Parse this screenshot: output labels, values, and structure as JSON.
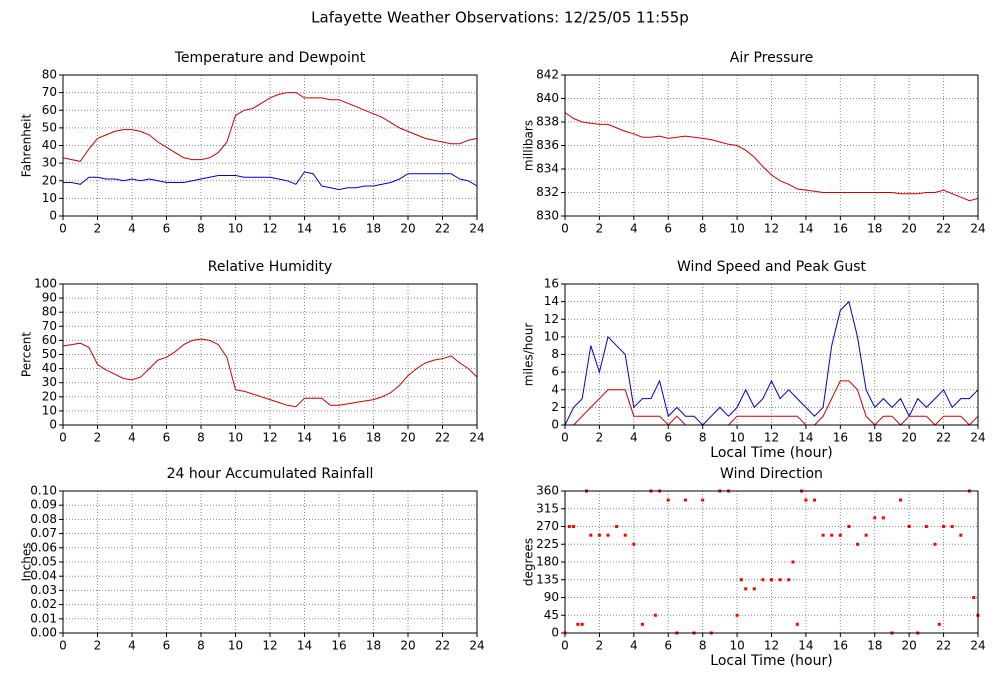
{
  "title": "Lafayette Weather Observations: 12/25/05 11:55p",
  "chart_data": [
    {
      "type": "line",
      "title": "Temperature and Dewpoint",
      "ylabel": "Fahrenheit",
      "x": [
        0,
        0.5,
        1,
        1.5,
        2,
        2.5,
        3,
        3.5,
        4,
        4.5,
        5,
        5.5,
        6,
        6.5,
        7,
        7.5,
        8,
        8.5,
        9,
        9.5,
        10,
        10.5,
        11,
        11.5,
        12,
        12.5,
        13,
        13.5,
        14,
        14.5,
        15,
        15.5,
        16,
        16.5,
        17,
        17.5,
        18,
        18.5,
        19,
        19.5,
        20,
        20.5,
        21,
        21.5,
        22,
        22.5,
        23,
        23.5,
        24
      ],
      "series": [
        {
          "color": "#cc0000",
          "values": [
            33,
            32,
            31,
            38,
            44,
            46,
            48,
            49,
            49,
            48,
            46,
            42,
            39,
            36,
            33,
            32,
            32,
            33,
            36,
            42,
            57,
            60,
            61,
            64,
            67,
            69,
            70,
            70,
            67,
            67,
            67,
            66,
            66,
            64,
            62,
            60,
            58,
            56,
            53,
            50,
            48,
            46,
            44,
            43,
            42,
            41,
            41,
            43,
            44
          ]
        },
        {
          "color": "#0000cc",
          "values": [
            19,
            19,
            18,
            22,
            22,
            21,
            21,
            20,
            21,
            20,
            21,
            20,
            19,
            19,
            19,
            20,
            21,
            22,
            23,
            23,
            23,
            22,
            22,
            22,
            22,
            21,
            20,
            18,
            25,
            24,
            17,
            16,
            15,
            16,
            16,
            17,
            17,
            18,
            19,
            21,
            24,
            24,
            24,
            24,
            24,
            24,
            21,
            20,
            17
          ]
        }
      ],
      "xlim": [
        0,
        24
      ],
      "ylim": [
        0,
        80
      ],
      "xticks": [
        0,
        2,
        4,
        6,
        8,
        10,
        12,
        14,
        16,
        18,
        20,
        22,
        24
      ],
      "yticks": [
        0,
        10,
        20,
        30,
        40,
        50,
        60,
        70,
        80
      ],
      "grid": true
    },
    {
      "type": "line",
      "title": "Air Pressure",
      "ylabel": "millibars",
      "x": [
        0,
        0.5,
        1,
        1.5,
        2,
        2.5,
        3,
        3.5,
        4,
        4.5,
        5,
        5.5,
        6,
        6.5,
        7,
        7.5,
        8,
        8.5,
        9,
        9.5,
        10,
        10.5,
        11,
        11.5,
        12,
        12.5,
        13,
        13.5,
        14,
        14.5,
        15,
        15.5,
        16,
        16.5,
        17,
        17.5,
        18,
        18.5,
        19,
        19.5,
        20,
        20.5,
        21,
        21.5,
        22,
        22.5,
        23,
        23.5,
        24
      ],
      "series": [
        {
          "color": "#cc0000",
          "values": [
            838.8,
            838.3,
            838.0,
            837.9,
            837.8,
            837.8,
            837.5,
            837.2,
            837.0,
            836.7,
            836.7,
            836.8,
            836.6,
            836.7,
            836.8,
            836.7,
            836.6,
            836.5,
            836.3,
            836.1,
            836.0,
            835.6,
            835.0,
            834.2,
            833.5,
            833.0,
            832.7,
            832.3,
            832.2,
            832.1,
            832.0,
            832.0,
            832.0,
            832.0,
            832.0,
            832.0,
            832.0,
            832.0,
            832.0,
            831.9,
            831.9,
            831.9,
            832.0,
            832.0,
            832.2,
            831.9,
            831.6,
            831.3,
            831.5
          ]
        }
      ],
      "xlim": [
        0,
        24
      ],
      "ylim": [
        830,
        842
      ],
      "xticks": [
        0,
        2,
        4,
        6,
        8,
        10,
        12,
        14,
        16,
        18,
        20,
        22,
        24
      ],
      "yticks": [
        830,
        832,
        834,
        836,
        838,
        840,
        842
      ],
      "grid": true
    },
    {
      "type": "line",
      "title": "Relative Humidity",
      "ylabel": "Percent",
      "x": [
        0,
        0.5,
        1,
        1.5,
        2,
        2.5,
        3,
        3.5,
        4,
        4.5,
        5,
        5.5,
        6,
        6.5,
        7,
        7.5,
        8,
        8.5,
        9,
        9.5,
        10,
        10.5,
        11,
        11.5,
        12,
        12.5,
        13,
        13.5,
        14,
        14.5,
        15,
        15.5,
        16,
        16.5,
        17,
        17.5,
        18,
        18.5,
        19,
        19.5,
        20,
        20.5,
        21,
        21.5,
        22,
        22.5,
        23,
        23.5,
        24
      ],
      "series": [
        {
          "color": "#cc0000",
          "values": [
            56,
            57,
            58,
            55,
            43,
            39,
            36,
            33,
            32,
            34,
            40,
            46,
            48,
            52,
            57,
            60,
            61,
            60,
            57,
            48,
            25,
            24,
            22,
            20,
            18,
            16,
            14,
            13,
            19,
            19,
            19,
            14,
            14,
            15,
            16,
            17,
            18,
            20,
            23,
            28,
            35,
            40,
            44,
            46,
            47,
            49,
            44,
            40,
            34
          ]
        }
      ],
      "xlim": [
        0,
        24
      ],
      "ylim": [
        0,
        100
      ],
      "xticks": [
        0,
        2,
        4,
        6,
        8,
        10,
        12,
        14,
        16,
        18,
        20,
        22,
        24
      ],
      "yticks": [
        0,
        10,
        20,
        30,
        40,
        50,
        60,
        70,
        80,
        90,
        100
      ],
      "grid": true
    },
    {
      "type": "line",
      "title": "Wind Speed and Peak Gust",
      "ylabel": "miles/hour",
      "xlabel": "Local Time (hour)",
      "x": [
        0,
        0.5,
        1,
        1.5,
        2,
        2.5,
        3,
        3.5,
        4,
        4.5,
        5,
        5.5,
        6,
        6.5,
        7,
        7.5,
        8,
        8.5,
        9,
        9.5,
        10,
        10.5,
        11,
        11.5,
        12,
        12.5,
        13,
        13.5,
        14,
        14.5,
        15,
        15.5,
        16,
        16.5,
        17,
        17.5,
        18,
        18.5,
        19,
        19.5,
        20,
        20.5,
        21,
        21.5,
        22,
        22.5,
        23,
        23.5,
        24
      ],
      "series": [
        {
          "color": "#0000cc",
          "values": [
            0,
            2,
            3,
            9,
            6,
            10,
            9,
            8,
            2,
            3,
            3,
            5,
            1,
            2,
            1,
            1,
            0,
            1,
            2,
            1,
            2,
            4,
            2,
            3,
            5,
            3,
            4,
            3,
            2,
            1,
            2,
            9,
            13,
            14,
            10,
            4,
            2,
            3,
            2,
            3,
            1,
            3,
            2,
            3,
            4,
            2,
            3,
            3,
            4
          ]
        },
        {
          "color": "#cc0000",
          "values": [
            0,
            0,
            1,
            2,
            3,
            4,
            4,
            4,
            1,
            1,
            1,
            1,
            0,
            1,
            0,
            0,
            0,
            0,
            0,
            0,
            1,
            1,
            1,
            1,
            1,
            1,
            1,
            1,
            0,
            0,
            1,
            3,
            5,
            5,
            4,
            1,
            0,
            1,
            1,
            0,
            1,
            1,
            1,
            0,
            1,
            1,
            1,
            0,
            1
          ]
        }
      ],
      "xlim": [
        0,
        24
      ],
      "ylim": [
        0,
        16
      ],
      "xticks": [
        0,
        2,
        4,
        6,
        8,
        10,
        12,
        14,
        16,
        18,
        20,
        22,
        24
      ],
      "yticks": [
        0,
        2,
        4,
        6,
        8,
        10,
        12,
        14,
        16
      ],
      "grid": true
    },
    {
      "type": "line",
      "title": "24 hour Accumulated Rainfall",
      "ylabel": "Inches",
      "x": [
        0,
        24
      ],
      "series": [
        {
          "color": "#cc0000",
          "values": [
            0,
            0
          ]
        }
      ],
      "xlim": [
        0,
        24
      ],
      "ylim": [
        0,
        0.1
      ],
      "xticks": [
        0,
        2,
        4,
        6,
        8,
        10,
        12,
        14,
        16,
        18,
        20,
        22,
        24
      ],
      "yticks": [
        {
          "value": 0,
          "label": "0.00"
        },
        {
          "value": 0.01,
          "label": "0.01"
        },
        {
          "value": 0.02,
          "label": "0.02"
        },
        {
          "value": 0.03,
          "label": "0.03"
        },
        {
          "value": 0.04,
          "label": "0.04"
        },
        {
          "value": 0.05,
          "label": "0.05"
        },
        {
          "value": 0.06,
          "label": "0.06"
        },
        {
          "value": 0.07,
          "label": "0.07"
        },
        {
          "value": 0.08,
          "label": "0.08"
        },
        {
          "value": 0.09,
          "label": "0.09"
        },
        {
          "value": 0.1,
          "label": "0.10"
        }
      ],
      "grid": true
    },
    {
      "type": "scatter",
      "title": "Wind Direction",
      "ylabel": "degrees",
      "xlabel": "Local Time (hour)",
      "x": [
        0,
        0.25,
        0.5,
        0.75,
        1,
        1.25,
        1.5,
        2,
        2.5,
        3,
        3.5,
        4,
        4.5,
        5,
        5.25,
        5.5,
        6,
        6.5,
        7,
        7.5,
        8,
        8.5,
        9,
        9.5,
        10,
        10.25,
        10.5,
        11,
        11.5,
        12,
        12.5,
        13,
        13.25,
        13.5,
        13.75,
        14,
        14.5,
        15,
        15.5,
        16,
        16.5,
        17,
        17.5,
        18,
        18.5,
        19,
        19.5,
        20,
        20.5,
        21,
        21.5,
        21.75,
        22,
        22.5,
        23,
        23.5,
        23.75,
        24
      ],
      "series": [
        {
          "color": "#ff0000",
          "values": [
            0,
            270,
            270,
            22,
            22,
            360,
            248,
            248,
            248,
            270,
            248,
            225,
            22,
            360,
            45,
            360,
            337,
            0,
            337,
            0,
            337,
            0,
            360,
            360,
            45,
            135,
            112,
            112,
            135,
            135,
            135,
            135,
            180,
            22,
            360,
            337,
            337,
            248,
            248,
            248,
            270,
            225,
            248,
            292,
            292,
            0,
            337,
            270,
            0,
            270,
            225,
            22,
            270,
            270,
            248,
            360,
            90,
            45
          ]
        }
      ],
      "xlim": [
        0,
        24
      ],
      "ylim": [
        0,
        360
      ],
      "xticks": [
        0,
        2,
        4,
        6,
        8,
        10,
        12,
        14,
        16,
        18,
        20,
        22,
        24
      ],
      "yticks": [
        0,
        45,
        90,
        135,
        180,
        225,
        270,
        315,
        360
      ],
      "grid": true
    }
  ]
}
